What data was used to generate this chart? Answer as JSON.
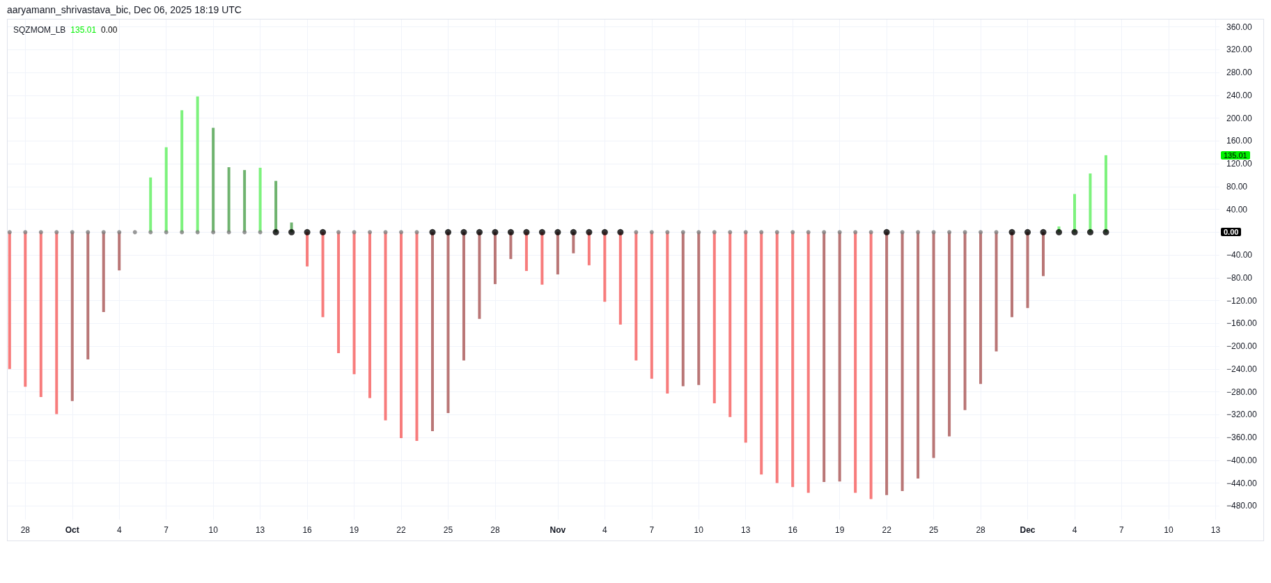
{
  "chart_data": {
    "type": "bar",
    "title": "SQZMOM_LB",
    "annotations": [
      "aaryamann_shrivastava_bic, Dec 06, 2025 18:19 UTC",
      "135.01",
      "0.00",
      "135.01",
      "0.00"
    ],
    "x": [
      "2025-09-27",
      "2025-09-28",
      "2025-09-29",
      "2025-09-30",
      "2025-10-01",
      "2025-10-02",
      "2025-10-03",
      "2025-10-04",
      "2025-10-05",
      "2025-10-06",
      "2025-10-07",
      "2025-10-08",
      "2025-10-09",
      "2025-10-10",
      "2025-10-11",
      "2025-10-12",
      "2025-10-13",
      "2025-10-14",
      "2025-10-15",
      "2025-10-16",
      "2025-10-17",
      "2025-10-18",
      "2025-10-19",
      "2025-10-20",
      "2025-10-21",
      "2025-10-22",
      "2025-10-23",
      "2025-10-24",
      "2025-10-25",
      "2025-10-26",
      "2025-10-27",
      "2025-10-28",
      "2025-10-29",
      "2025-10-30",
      "2025-10-31",
      "2025-11-01",
      "2025-11-02",
      "2025-11-03",
      "2025-11-04",
      "2025-11-05",
      "2025-11-06",
      "2025-11-07",
      "2025-11-08",
      "2025-11-09",
      "2025-11-10",
      "2025-11-11",
      "2025-11-12",
      "2025-11-13",
      "2025-11-14",
      "2025-11-15",
      "2025-11-16",
      "2025-11-17",
      "2025-11-18",
      "2025-11-19",
      "2025-11-20",
      "2025-11-21",
      "2025-11-22",
      "2025-11-23",
      "2025-11-24",
      "2025-11-25",
      "2025-11-26",
      "2025-11-27",
      "2025-11-28",
      "2025-11-29",
      "2025-11-30",
      "2025-12-01",
      "2025-12-02",
      "2025-12-03",
      "2025-12-04",
      "2025-12-05",
      "2025-12-06"
    ],
    "series": [
      {
        "values": [
          -240,
          -271,
          -289,
          -319,
          -296,
          -223,
          -140,
          -67,
          null,
          96,
          149,
          214,
          238,
          183,
          114,
          109,
          113,
          90,
          17,
          -60,
          -149,
          -212,
          -249,
          -291,
          -330,
          -361,
          -366,
          -349,
          -317,
          -225,
          -152,
          -91,
          -47,
          -68,
          -92,
          -74,
          -37,
          -58,
          -122,
          -162,
          -225,
          -257,
          -283,
          -270,
          -268,
          -300,
          -324,
          -369,
          -425,
          -440,
          -447,
          -457,
          -438,
          -437,
          -457,
          -468,
          -461,
          -454,
          -432,
          -396,
          -358,
          -312,
          -266,
          -209,
          -149,
          -133,
          -77,
          10,
          67,
          103,
          135.01
        ],
        "colors": [
          "#f77c7c",
          "#f77c7c",
          "#f77c7c",
          "#f77c7c",
          "#b97676",
          "#b97676",
          "#b97676",
          "#b97676",
          "#b97676",
          "#7df27d",
          "#7df27d",
          "#7df27d",
          "#7df27d",
          "#6fb36f",
          "#6fb36f",
          "#6fb36f",
          "#7df27d",
          "#6fb36f",
          "#6fb36f",
          "#f77c7c",
          "#f77c7c",
          "#f77c7c",
          "#f77c7c",
          "#f77c7c",
          "#f77c7c",
          "#f77c7c",
          "#f77c7c",
          "#b97676",
          "#b97676",
          "#b97676",
          "#b97676",
          "#b97676",
          "#b97676",
          "#f77c7c",
          "#f77c7c",
          "#b97676",
          "#b97676",
          "#f77c7c",
          "#f77c7c",
          "#f77c7c",
          "#f77c7c",
          "#f77c7c",
          "#f77c7c",
          "#b97676",
          "#b97676",
          "#f77c7c",
          "#f77c7c",
          "#f77c7c",
          "#f77c7c",
          "#f77c7c",
          "#f77c7c",
          "#f77c7c",
          "#b97676",
          "#b97676",
          "#f77c7c",
          "#f77c7c",
          "#b97676",
          "#b97676",
          "#b97676",
          "#b97676",
          "#b97676",
          "#b97676",
          "#b97676",
          "#b97676",
          "#b97676",
          "#b97676",
          "#b97676",
          "#7df27d",
          "#7df27d",
          "#7df27d",
          "#7df27d"
        ]
      },
      {
        "type": "scatter",
        "values": [
          0,
          0,
          0,
          0,
          0,
          0,
          0,
          0,
          0,
          0,
          0,
          0,
          0,
          0,
          0,
          0,
          0,
          0,
          0,
          0,
          0,
          0,
          0,
          0,
          0,
          0,
          0,
          0,
          0,
          0,
          0,
          0,
          0,
          0,
          0,
          0,
          0,
          0,
          0,
          0,
          0,
          0,
          0,
          0,
          0,
          0,
          0,
          0,
          0,
          0,
          0,
          0,
          0,
          0,
          0,
          0,
          0,
          0,
          0,
          0,
          0,
          0,
          0,
          0,
          0,
          0,
          0,
          0,
          0,
          0,
          0
        ],
        "colors": [
          "#808080",
          "#808080",
          "#808080",
          "#808080",
          "#808080",
          "#808080",
          "#808080",
          "#808080",
          "#808080",
          "#808080",
          "#808080",
          "#808080",
          "#808080",
          "#808080",
          "#808080",
          "#808080",
          "#808080",
          "#000000",
          "#000000",
          "#000000",
          "#000000",
          "#808080",
          "#808080",
          "#808080",
          "#808080",
          "#808080",
          "#808080",
          "#000000",
          "#000000",
          "#000000",
          "#000000",
          "#000000",
          "#000000",
          "#000000",
          "#000000",
          "#000000",
          "#000000",
          "#000000",
          "#000000",
          "#000000",
          "#808080",
          "#808080",
          "#808080",
          "#808080",
          "#808080",
          "#808080",
          "#808080",
          "#808080",
          "#808080",
          "#808080",
          "#808080",
          "#808080",
          "#808080",
          "#808080",
          "#808080",
          "#808080",
          "#000000",
          "#808080",
          "#808080",
          "#808080",
          "#808080",
          "#808080",
          "#808080",
          "#808080",
          "#000000",
          "#000000",
          "#000000",
          "#000000",
          "#000000",
          "#000000",
          "#000000"
        ]
      }
    ],
    "xlim": [
      "2025-09-26T21:00",
      "2025-12-13T06:00"
    ],
    "xticks": [
      {
        "value": "2025-09-28",
        "label": "28"
      },
      {
        "value": "2025-10-01",
        "label": "Oct"
      },
      {
        "value": "2025-10-04",
        "label": "4"
      },
      {
        "value": "2025-10-07",
        "label": "7"
      },
      {
        "value": "2025-10-10",
        "label": "10"
      },
      {
        "value": "2025-10-13",
        "label": "13"
      },
      {
        "value": "2025-10-16",
        "label": "16"
      },
      {
        "value": "2025-10-19",
        "label": "19"
      },
      {
        "value": "2025-10-22",
        "label": "22"
      },
      {
        "value": "2025-10-25",
        "label": "25"
      },
      {
        "value": "2025-10-28",
        "label": "28"
      },
      {
        "value": "2025-11-01",
        "label": "Nov"
      },
      {
        "value": "2025-11-04",
        "label": "4"
      },
      {
        "value": "2025-11-07",
        "label": "7"
      },
      {
        "value": "2025-11-10",
        "label": "10"
      },
      {
        "value": "2025-11-13",
        "label": "13"
      },
      {
        "value": "2025-11-16",
        "label": "16"
      },
      {
        "value": "2025-11-19",
        "label": "19"
      },
      {
        "value": "2025-11-22",
        "label": "22"
      },
      {
        "value": "2025-11-25",
        "label": "25"
      },
      {
        "value": "2025-11-28",
        "label": "28"
      },
      {
        "value": "2025-12-01",
        "label": "Dec"
      },
      {
        "value": "2025-12-04",
        "label": "4"
      },
      {
        "value": "2025-12-07",
        "label": "7"
      },
      {
        "value": "2025-12-10",
        "label": "10"
      },
      {
        "value": "2025-12-13",
        "label": "13"
      }
    ],
    "ylim": [
      -504,
      373
    ],
    "yticks": [
      {
        "value": 360,
        "label": "360.00"
      },
      {
        "value": 320,
        "label": "320.00"
      },
      {
        "value": 280,
        "label": "280.00"
      },
      {
        "value": 240,
        "label": "240.00"
      },
      {
        "value": 200,
        "label": "200.00"
      },
      {
        "value": 160,
        "label": "160.00"
      },
      {
        "value": 120,
        "label": "120.00"
      },
      {
        "value": 80,
        "label": "80.00"
      },
      {
        "value": 40,
        "label": "40.00"
      },
      {
        "value": 0,
        "label": null
      },
      {
        "value": -40,
        "label": "−40.00"
      },
      {
        "value": -80,
        "label": "−80.00"
      },
      {
        "value": -120,
        "label": "−120.00"
      },
      {
        "value": -160,
        "label": "−160.00"
      },
      {
        "value": -200,
        "label": "−200.00"
      },
      {
        "value": -240,
        "label": "−240.00"
      },
      {
        "value": -280,
        "label": "−280.00"
      },
      {
        "value": -320,
        "label": "−320.00"
      },
      {
        "value": -360,
        "label": "−360.00"
      },
      {
        "value": -400,
        "label": "−400.00"
      },
      {
        "value": -440,
        "label": "−440.00"
      },
      {
        "value": -480,
        "label": "−480.00"
      }
    ],
    "grid": true,
    "marker": "circle"
  }
}
